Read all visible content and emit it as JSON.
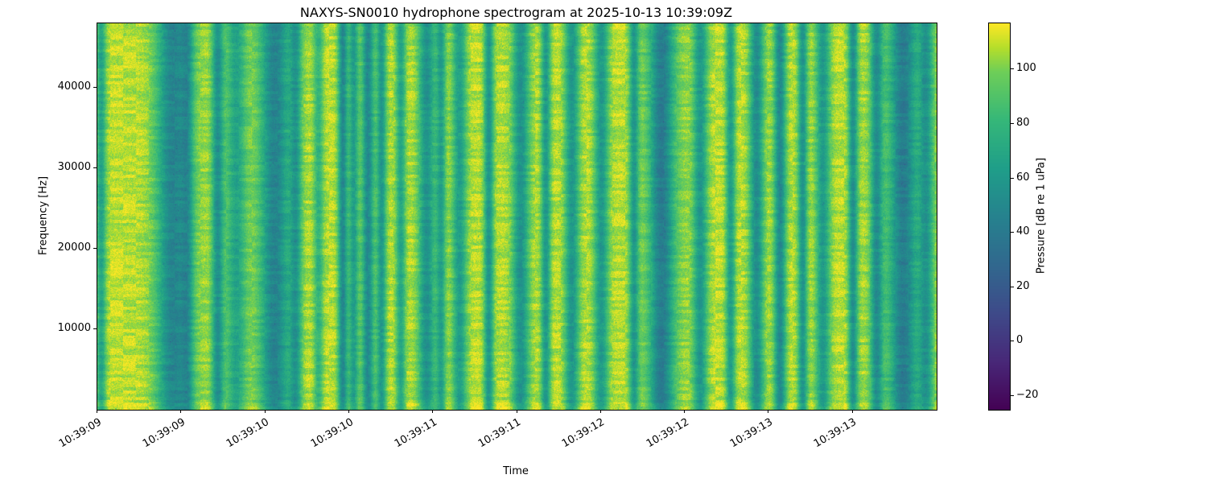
{
  "chart_data": {
    "type": "heatmap",
    "title": "NAXYS-SN0010 hydrophone spectrogram at 2025-10-13 10:39:09Z",
    "xlabel": "Time",
    "ylabel": "Frequency [Hz]",
    "colorbar_label": "Pressure [dB re 1 uPa]",
    "colormap": "viridis",
    "legend_position": "right-colorbar",
    "grid": false,
    "x_tick_labels": [
      "10:39:09",
      "10:39:09",
      "10:39:10",
      "10:39:10",
      "10:39:11",
      "10:39:11",
      "10:39:12",
      "10:39:12",
      "10:39:13",
      "10:39:13"
    ],
    "x_tick_positions": [
      0.0,
      0.1,
      0.2,
      0.3,
      0.4,
      0.5,
      0.6,
      0.7,
      0.8,
      0.9
    ],
    "y_ticks": [
      10000,
      20000,
      30000,
      40000
    ],
    "y_range_hz": [
      0,
      48000
    ],
    "colorbar_ticks": [
      100,
      80,
      60,
      40,
      20,
      0,
      -20
    ],
    "value_range_db": [
      -25,
      117
    ],
    "background_level_db": 109,
    "pixel_noise_db": 14,
    "block_noise_db": 12,
    "speckle_probability": 0.004,
    "speckle_drop_db": 22,
    "bright_bottom_band": {
      "height_frac": 0.02,
      "boost_db": 6
    },
    "stripes": [
      [
        0.004,
        0.004,
        40
      ],
      [
        0.089,
        0.013,
        48
      ],
      [
        0.095,
        0.02,
        14
      ],
      [
        0.107,
        0.005,
        30
      ],
      [
        0.143,
        0.005,
        52
      ],
      [
        0.165,
        0.008,
        40
      ],
      [
        0.21,
        0.02,
        10
      ],
      [
        0.211,
        0.012,
        52
      ],
      [
        0.236,
        0.005,
        42
      ],
      [
        0.263,
        0.004,
        30
      ],
      [
        0.292,
        0.004,
        58
      ],
      [
        0.305,
        0.004,
        45
      ],
      [
        0.322,
        0.005,
        58
      ],
      [
        0.338,
        0.004,
        48
      ],
      [
        0.361,
        0.004,
        40
      ],
      [
        0.392,
        0.007,
        52
      ],
      [
        0.409,
        0.004,
        42
      ],
      [
        0.431,
        0.006,
        45
      ],
      [
        0.466,
        0.004,
        50
      ],
      [
        0.504,
        0.007,
        52
      ],
      [
        0.534,
        0.004,
        48
      ],
      [
        0.565,
        0.006,
        50
      ],
      [
        0.6,
        0.006,
        48
      ],
      [
        0.639,
        0.004,
        45
      ],
      [
        0.672,
        0.02,
        12
      ],
      [
        0.672,
        0.01,
        55
      ],
      [
        0.718,
        0.006,
        48
      ],
      [
        0.754,
        0.004,
        45
      ],
      [
        0.785,
        0.006,
        55
      ],
      [
        0.813,
        0.005,
        58
      ],
      [
        0.84,
        0.004,
        50
      ],
      [
        0.864,
        0.006,
        48
      ],
      [
        0.9,
        0.004,
        52
      ],
      [
        0.928,
        0.005,
        48
      ],
      [
        0.955,
        0.025,
        12
      ],
      [
        0.96,
        0.011,
        55
      ],
      [
        0.987,
        0.006,
        45
      ]
    ],
    "viridis_anchors": [
      [
        0.0,
        "#440154"
      ],
      [
        0.125,
        "#482878"
      ],
      [
        0.25,
        "#3e4a89"
      ],
      [
        0.375,
        "#31688e"
      ],
      [
        0.5,
        "#26828e"
      ],
      [
        0.625,
        "#1f9e89"
      ],
      [
        0.75,
        "#35b779"
      ],
      [
        0.875,
        "#6ece58"
      ],
      [
        0.9375,
        "#b5de2b"
      ],
      [
        1.0,
        "#fde725"
      ]
    ]
  }
}
